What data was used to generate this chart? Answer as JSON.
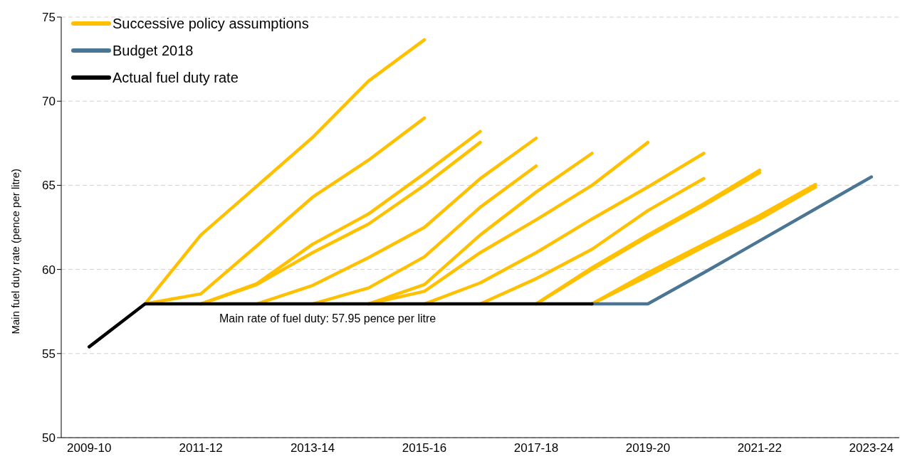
{
  "chart_data": {
    "type": "line",
    "ylabel": "Main fuel duty rate (pence per litre)",
    "categories": [
      "2009-10",
      null,
      "2011-12",
      null,
      "2013-14",
      null,
      "2015-16",
      null,
      "2017-18",
      null,
      "2019-20",
      null,
      "2021-22",
      null,
      "2023-24"
    ],
    "ylim": [
      50,
      75
    ],
    "yticks": [
      50,
      55,
      60,
      65,
      70,
      75
    ],
    "grid": "y",
    "legend": "top left",
    "annotations": [
      "Main rate of fuel duty: 57.95 pence per litre"
    ],
    "series": [
      {
        "name": "Successive policy assumptions",
        "color": "#ffc000",
        "values": [
          null,
          57.95,
          62.05,
          64.95,
          67.85,
          71.2,
          73.65,
          null,
          null,
          null,
          null,
          null,
          null,
          null,
          null
        ]
      },
      {
        "color": "#ffc000",
        "values": [
          null,
          57.95,
          58.55,
          61.4,
          64.3,
          66.5,
          69.0,
          null,
          null,
          null,
          null,
          null,
          null,
          null,
          null
        ]
      },
      {
        "color": "#ffc000",
        "values": [
          null,
          null,
          57.95,
          59.15,
          61.5,
          63.3,
          65.7,
          68.2,
          null,
          null,
          null,
          null,
          null,
          null,
          null
        ]
      },
      {
        "color": "#ffc000",
        "values": [
          null,
          null,
          57.95,
          59.1,
          61.0,
          62.7,
          65.0,
          67.55,
          null,
          null,
          null,
          null,
          null,
          null,
          null
        ]
      },
      {
        "color": "#ffc000",
        "values": [
          null,
          null,
          null,
          57.95,
          59.05,
          60.7,
          62.5,
          65.4,
          67.8,
          null,
          null,
          null,
          null,
          null,
          null
        ]
      },
      {
        "color": "#ffc000",
        "values": [
          null,
          null,
          null,
          null,
          57.95,
          58.9,
          60.75,
          63.7,
          66.15,
          null,
          null,
          null,
          null,
          null,
          null
        ]
      },
      {
        "color": "#ffc000",
        "values": [
          null,
          null,
          null,
          null,
          null,
          57.95,
          59.1,
          62.05,
          64.6,
          66.9,
          null,
          null,
          null,
          null,
          null
        ]
      },
      {
        "color": "#ffc000",
        "values": [
          null,
          null,
          null,
          null,
          null,
          57.95,
          58.7,
          61.0,
          62.95,
          65.0,
          67.55,
          null,
          null,
          null,
          null
        ]
      },
      {
        "color": "#ffc000",
        "values": [
          null,
          null,
          null,
          null,
          null,
          null,
          57.95,
          59.2,
          61.0,
          63.0,
          64.9,
          66.9,
          null,
          null,
          null
        ]
      },
      {
        "color": "#ffc000",
        "values": [
          null,
          null,
          null,
          null,
          null,
          null,
          null,
          57.95,
          59.45,
          61.2,
          63.5,
          65.4,
          null,
          null,
          null
        ]
      },
      {
        "color": "#ffc000",
        "values": [
          null,
          null,
          null,
          null,
          null,
          null,
          null,
          null,
          57.95,
          60.1,
          62.05,
          63.9,
          65.9,
          null,
          null
        ]
      },
      {
        "color": "#ffc000",
        "values": [
          null,
          null,
          null,
          null,
          null,
          null,
          null,
          null,
          57.95,
          60.0,
          61.95,
          63.8,
          65.75,
          null,
          null
        ]
      },
      {
        "color": "#ffc000",
        "values": [
          null,
          null,
          null,
          null,
          null,
          null,
          null,
          null,
          null,
          57.95,
          59.8,
          61.5,
          63.2,
          65.05,
          null
        ]
      },
      {
        "color": "#ffc000",
        "values": [
          null,
          null,
          null,
          null,
          null,
          null,
          null,
          null,
          null,
          57.95,
          59.6,
          61.35,
          63.0,
          64.9,
          null
        ]
      },
      {
        "name": "Budget 2018",
        "color": "#4a7594",
        "values": [
          null,
          null,
          null,
          null,
          null,
          null,
          null,
          null,
          null,
          57.95,
          57.95,
          59.8,
          61.7,
          63.6,
          65.5
        ]
      },
      {
        "name": "Actual fuel duty rate",
        "color": "#000000",
        "values": [
          55.4,
          57.95,
          57.95,
          57.95,
          57.95,
          57.95,
          57.95,
          57.95,
          57.95,
          57.95,
          null,
          null,
          null,
          null,
          null
        ]
      }
    ]
  }
}
